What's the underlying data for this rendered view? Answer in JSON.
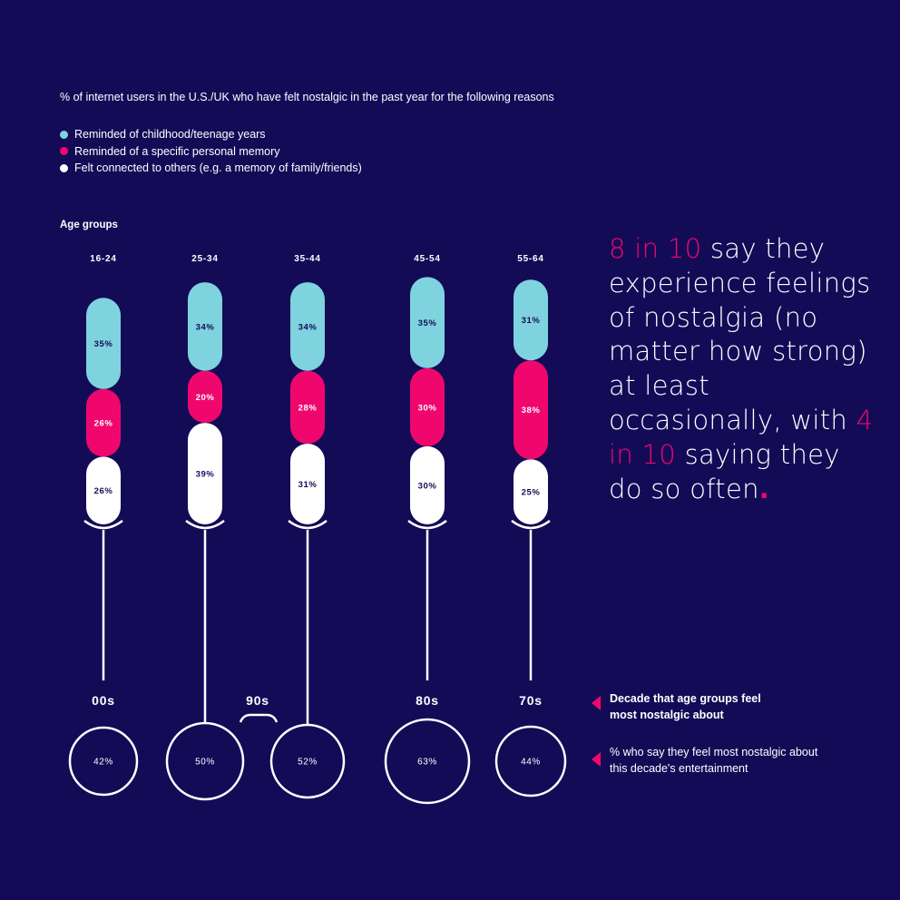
{
  "subtitle": "% of internet users in the U.S./UK who have felt nostalgic in the past year for the following reasons",
  "legend": [
    {
      "label": "Reminded of childhood/teenage years",
      "color": "#7ed3df"
    },
    {
      "label": "Reminded of a specific personal memory",
      "color": "#f0076e"
    },
    {
      "label": "Felt connected to others (e.g. a memory of family/friends)",
      "color": "#ffffff"
    }
  ],
  "age_groups_title": "Age groups",
  "quote": {
    "part1_pink": "8 in 10",
    "part2": " say they experience feelings of nostalgia (no matter how strong) at least occasionally, with ",
    "part3_pink": "4 in 10",
    "part4": " saying they do so often",
    "dot": "."
  },
  "key": {
    "decade": "Decade that age groups feel most nostalgic about",
    "percent": "% who say they feel most nostalgic about this decade's entertainment"
  },
  "chart_data": {
    "type": "bar",
    "stacked": true,
    "categories": [
      "16-24",
      "25-34",
      "35-44",
      "45-54",
      "55-64"
    ],
    "series": [
      {
        "name": "Reminded of childhood/teenage years",
        "color": "#7ed3df",
        "values": [
          35,
          34,
          34,
          35,
          31
        ]
      },
      {
        "name": "Reminded of a specific personal memory",
        "color": "#f0076e",
        "values": [
          26,
          20,
          28,
          30,
          38
        ]
      },
      {
        "name": "Felt connected to others (e.g. a memory of family/friends)",
        "color": "#ffffff",
        "values": [
          26,
          39,
          31,
          30,
          25
        ]
      }
    ],
    "value_labels": [
      [
        "35%",
        "26%",
        "26%"
      ],
      [
        "34%",
        "20%",
        "39%"
      ],
      [
        "34%",
        "28%",
        "31%"
      ],
      [
        "35%",
        "30%",
        "30%"
      ],
      [
        "31%",
        "38%",
        "25%"
      ]
    ],
    "decades": [
      {
        "label": "00s",
        "percent": 42,
        "percent_label": "42%",
        "groups": [
          "16-24"
        ]
      },
      {
        "label": "90s",
        "percent": 50,
        "percent_label": "50%",
        "groups": [
          "25-34"
        ]
      },
      {
        "label": "90s",
        "percent": 52,
        "percent_label": "52%",
        "groups": [
          "35-44"
        ]
      },
      {
        "label": "80s",
        "percent": 63,
        "percent_label": "63%",
        "groups": [
          "45-54"
        ]
      },
      {
        "label": "70s",
        "percent": 44,
        "percent_label": "44%",
        "groups": [
          "55-64"
        ]
      }
    ],
    "decade_labels": [
      "00s",
      "90s",
      "80s",
      "70s"
    ]
  }
}
